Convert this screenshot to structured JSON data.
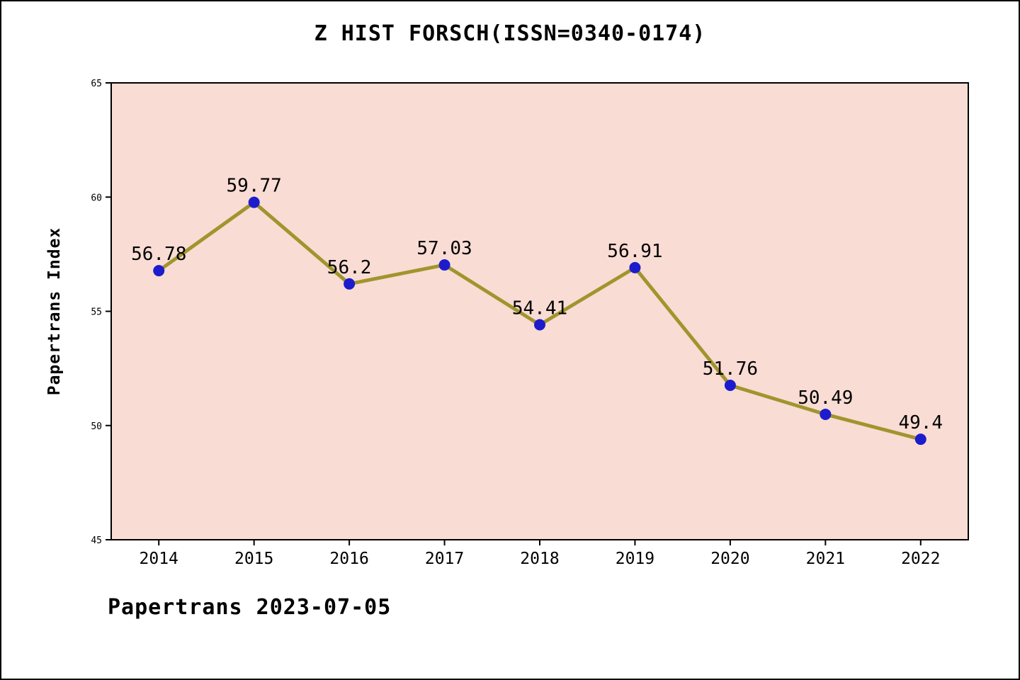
{
  "title": "Z HIST FORSCH(ISSN=0340-0174)",
  "footer": {
    "text": "Papertrans 2023-07-05"
  },
  "chart_data": {
    "type": "line",
    "title": "Z HIST FORSCH(ISSN=0340-0174)",
    "categories": [
      "2014",
      "2015",
      "2016",
      "2017",
      "2018",
      "2019",
      "2020",
      "2021",
      "2022"
    ],
    "values": [
      56.78,
      59.77,
      56.2,
      57.03,
      54.41,
      56.91,
      51.76,
      50.49,
      49.4
    ],
    "xlabel": "",
    "ylabel": "Papertrans Index",
    "ylim": [
      45,
      65
    ],
    "yticks": [
      45,
      50,
      55,
      60,
      65
    ],
    "grid": false,
    "legend": null,
    "annotations": "values shown above each point",
    "colors": {
      "plot_background": "#f9dcd4",
      "line": "#a0952d",
      "marker": "#1c1ccd",
      "axis": "#000000",
      "label_text": "#000000"
    }
  }
}
